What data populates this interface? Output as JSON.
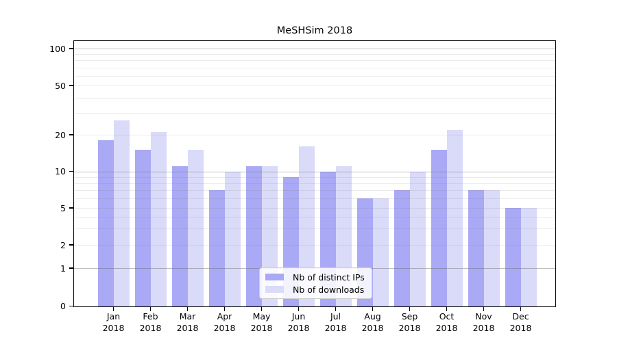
{
  "chart_data": {
    "type": "bar",
    "title": "MeSHSim 2018",
    "categories": [
      "Jan 2018",
      "Feb 2018",
      "Mar 2018",
      "Apr 2018",
      "May 2018",
      "Jun 2018",
      "Jul 2018",
      "Aug 2018",
      "Sep 2018",
      "Oct 2018",
      "Nov 2018",
      "Dec 2018"
    ],
    "series": [
      {
        "name": "Nb of distinct IPs",
        "color": "#a9a9f5",
        "values": [
          18,
          15,
          11,
          7,
          11,
          9,
          10,
          6,
          7,
          15,
          7,
          5
        ]
      },
      {
        "name": "Nb of downloads",
        "color": "#dadaf9",
        "values": [
          26,
          21,
          15,
          10,
          11,
          16,
          11,
          6,
          10,
          22,
          7,
          5
        ]
      }
    ],
    "y_ticks": [
      100,
      50,
      20,
      10,
      5,
      2,
      1,
      0
    ],
    "y_scale": "log above 1, linear segment 0-1 (symlog-like)",
    "ylim": [
      0,
      115
    ],
    "xlabel": "",
    "ylabel": "",
    "grid": true,
    "legend_position": "lower center"
  }
}
